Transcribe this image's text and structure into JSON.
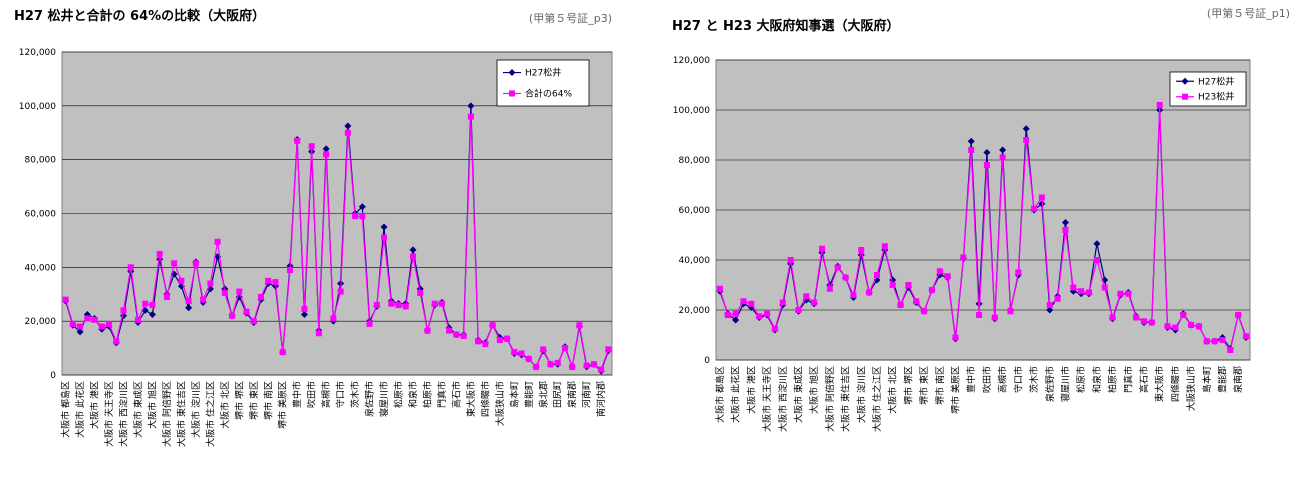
{
  "chart_data": [
    {
      "type": "line",
      "title": "H27 松井と合計の 64%の比較（大阪府）",
      "note": "(甲第５号証_p3)",
      "categories": [
        "大阪市 都島区",
        null,
        "大阪市 此花区",
        null,
        "大阪市 港区",
        null,
        "大阪市 天王寺区",
        null,
        "大阪市 西淀川区",
        null,
        "大阪市 東成区",
        null,
        "大阪市 旭区",
        null,
        "大阪市 阿倍野区",
        null,
        "大阪市 東住吉区",
        null,
        "大阪市 淀川区",
        null,
        "大阪市 住之江区",
        null,
        "大阪市 北区",
        null,
        "堺市 堺区",
        null,
        "堺市 東区",
        null,
        "堺市 南区",
        null,
        "堺市 美原区",
        null,
        "豊中市",
        null,
        "吹田市",
        null,
        "高槻市",
        null,
        "守口市",
        null,
        "茨木市",
        null,
        "泉佐野市",
        null,
        "寝屋川市",
        null,
        "松原市",
        null,
        "和泉市",
        null,
        "柏原市",
        null,
        "門真市",
        null,
        "高石市",
        null,
        "東大阪市",
        null,
        "四條畷市",
        null,
        "大阪狭山市",
        null,
        "島本町",
        null,
        "豊能町",
        null,
        "泉北郡",
        null,
        "田尻町",
        null,
        "泉南郡",
        null,
        "河南町",
        null,
        "南河内郡",
        null
      ],
      "series": [
        {
          "name": "H27松井",
          "color": "#000080",
          "marker": "diamond",
          "values": [
            27500,
            18500,
            16000,
            22500,
            21000,
            17000,
            18000,
            12000,
            22000,
            38500,
            19500,
            24000,
            22500,
            43000,
            30000,
            37500,
            33000,
            25000,
            42000,
            27000,
            32000,
            44000,
            32000,
            22000,
            29000,
            23000,
            19500,
            28000,
            34000,
            33000,
            8500,
            40500,
            87500,
            22500,
            83000,
            16500,
            84000,
            20000,
            34000,
            92500,
            60000,
            62500,
            20000,
            25500,
            55000,
            27500,
            26500,
            26500,
            46500,
            32000,
            16500,
            26000,
            27000,
            17500,
            15000,
            15000,
            100000,
            13000,
            12000,
            18500,
            14000,
            13500,
            8000,
            7500,
            6000,
            3000,
            9000,
            4000,
            4000,
            10500,
            3000,
            18000,
            3000,
            4000,
            1500,
            9000
          ]
        },
        {
          "name": "合計の64%",
          "color": "#ff00ff",
          "marker": "square",
          "values": [
            28000,
            19000,
            18000,
            21000,
            20500,
            18000,
            19000,
            12500,
            24000,
            40000,
            20500,
            26500,
            26000,
            45000,
            29000,
            41500,
            35000,
            27500,
            41500,
            28000,
            34000,
            49500,
            30500,
            22000,
            31000,
            23500,
            20000,
            29000,
            35000,
            34500,
            8500,
            39000,
            87000,
            24500,
            85000,
            15500,
            82000,
            21000,
            31000,
            90000,
            59000,
            59000,
            19000,
            26000,
            51000,
            26500,
            26000,
            25500,
            44000,
            30500,
            16500,
            26500,
            26500,
            16500,
            15000,
            14500,
            96000,
            12500,
            11500,
            18500,
            13000,
            13500,
            8500,
            8000,
            6000,
            3000,
            9500,
            4000,
            4500,
            10000,
            3000,
            18500,
            3500,
            4000,
            2000,
            9500
          ]
        }
      ],
      "ylim": [
        0,
        120000
      ],
      "yticks": [
        0,
        {
          "value": 20000,
          "label": "20,000"
        },
        {
          "value": 40000,
          "label": "40,000"
        },
        {
          "value": 60000,
          "label": "60,000"
        },
        {
          "value": 80000,
          "label": "80,000"
        },
        {
          "value": 100000,
          "label": "100,000"
        },
        {
          "value": 120000,
          "label": "120,000"
        }
      ],
      "grid": true,
      "legend": "upper right"
    },
    {
      "type": "line",
      "title": "H27 と H23 大阪府知事選（大阪府）",
      "note": "(甲第５号証_p1)",
      "categories": [
        "大阪市 都島区",
        null,
        "大阪市 此花区",
        null,
        "大阪市 港区",
        null,
        "大阪市 天王寺区",
        null,
        "大阪市 西淀川区",
        null,
        "大阪市 東成区",
        null,
        "大阪市 旭区",
        null,
        "大阪市 阿倍野区",
        null,
        "大阪市 東住吉区",
        null,
        "大阪市 淀川区",
        null,
        "大阪市 住之江区",
        null,
        "大阪市 北区",
        null,
        "堺市 堺区",
        null,
        "堺市 東区",
        null,
        "堺市 南区",
        null,
        "堺市 美原区",
        null,
        "豊中市",
        null,
        "吹田市",
        null,
        "高槻市",
        null,
        "守口市",
        null,
        "茨木市",
        null,
        "泉佐野市",
        null,
        "寝屋川市",
        null,
        "松原市",
        null,
        "和泉市",
        null,
        "柏原市",
        null,
        "門真市",
        null,
        "高石市",
        null,
        "東大阪市",
        null,
        "四條畷市",
        null,
        "大阪狭山市",
        null,
        "島本町",
        null,
        "豊能郡",
        null,
        "泉南郡",
        null
      ],
      "series": [
        {
          "name": "H27松井",
          "color": "#000080",
          "marker": "diamond",
          "values": [
            27500,
            18500,
            16000,
            22500,
            21000,
            17000,
            18000,
            12000,
            22000,
            38500,
            19500,
            24000,
            22500,
            43000,
            30000,
            37500,
            33000,
            25000,
            42000,
            27000,
            32000,
            44000,
            32000,
            22000,
            29000,
            23000,
            19500,
            28000,
            34000,
            33000,
            8500,
            40500,
            87500,
            22500,
            83000,
            16500,
            84000,
            20000,
            34000,
            92500,
            60000,
            62500,
            20000,
            25500,
            55000,
            27500,
            26500,
            26500,
            46500,
            32000,
            16500,
            26000,
            27000,
            17500,
            15000,
            15000,
            100000,
            13000,
            12000,
            18500,
            14000,
            13500,
            7500,
            7500,
            9000,
            4500,
            18000,
            9000
          ]
        },
        {
          "name": "H23松井",
          "color": "#ff00ff",
          "marker": "square",
          "values": [
            28500,
            18000,
            18500,
            23500,
            22500,
            17500,
            18500,
            12500,
            23000,
            40000,
            20000,
            25500,
            23000,
            44500,
            28500,
            37000,
            33000,
            26000,
            44000,
            27000,
            34000,
            45500,
            30000,
            22000,
            30000,
            23500,
            19500,
            28000,
            35500,
            33500,
            9000,
            41000,
            84000,
            18000,
            78000,
            17000,
            81000,
            19500,
            35000,
            88000,
            60500,
            65000,
            22000,
            24500,
            52000,
            29000,
            27500,
            27000,
            40000,
            29000,
            17000,
            26500,
            26500,
            17000,
            15500,
            15000,
            102000,
            13500,
            13000,
            18000,
            14000,
            13500,
            7500,
            7500,
            8000,
            4000,
            18000,
            9500
          ]
        }
      ],
      "ylim": [
        0,
        120000
      ],
      "yticks": [
        0,
        {
          "value": 20000,
          "label": "20,000"
        },
        {
          "value": 40000,
          "label": "40,000"
        },
        {
          "value": 60000,
          "label": "60,000"
        },
        {
          "value": 80000,
          "label": "80,000"
        },
        {
          "value": 100000,
          "label": "100,000"
        },
        {
          "value": 120000,
          "label": "120,000"
        }
      ],
      "grid": true,
      "legend": "upper right"
    }
  ]
}
